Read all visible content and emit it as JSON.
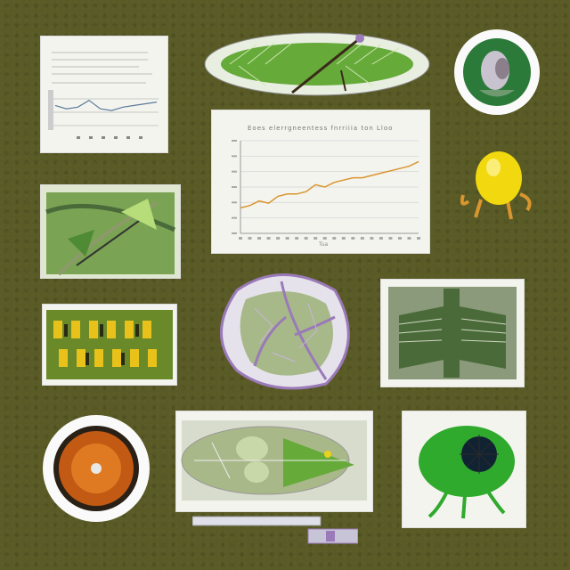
{
  "colors": {
    "background": "#5a5a26",
    "leaf_green": "#5fa83a",
    "vein_purple": "#9a7ab8",
    "orange_line": "#d9952e",
    "yellow": "#e8d21a",
    "paper": "#f4f4ef"
  },
  "main_chart": {
    "title": "Eoes elerrgneentess fnrriiia ton Lloo",
    "xlabel": "Tua",
    "tick_labels": [
      "",
      "",
      "",
      "",
      "",
      "",
      ""
    ]
  },
  "chart_data": [
    {
      "type": "line",
      "title": "Eoes elerrgneentess fnrriiia ton Lloo",
      "xlabel": "Tua",
      "ylabel": "",
      "x": [
        1,
        2,
        3,
        4,
        5,
        6,
        7,
        8,
        9,
        10,
        11,
        12,
        13,
        14,
        15,
        16,
        17,
        18,
        19,
        20
      ],
      "series": [
        {
          "values": [
            11,
            12,
            14,
            13,
            16,
            17,
            17,
            18,
            21,
            20,
            22,
            23,
            24,
            24,
            25,
            26,
            27,
            28,
            29,
            31
          ]
        }
      ],
      "grid": true
    },
    {
      "type": "line",
      "title": "",
      "xlabel": "",
      "ylabel": "",
      "x": [
        1,
        2,
        3,
        4,
        5,
        6,
        7,
        8,
        9,
        10
      ],
      "series": [
        {
          "values": [
            14,
            12,
            13,
            17,
            12,
            11,
            13,
            14,
            15,
            16
          ]
        }
      ],
      "grid": true
    }
  ]
}
